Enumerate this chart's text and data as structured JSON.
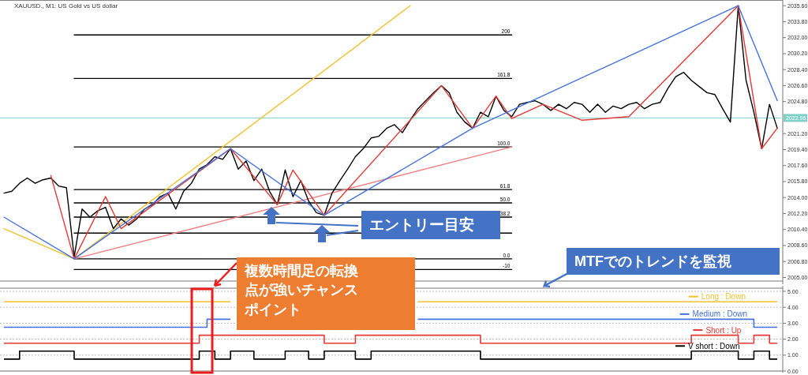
{
  "chart_data": [
    {
      "type": "line",
      "title": "XAUUSD., M1: US Gold vs US dollar",
      "ylim": [
        2004.6,
        2036.2
      ],
      "tick_labels": "y",
      "grid": false,
      "legend": false,
      "categories": [
        null,
        null,
        null,
        null,
        null,
        null,
        null,
        null,
        null,
        null,
        null,
        null,
        null,
        null,
        null,
        null,
        null,
        null,
        null,
        null,
        null,
        null,
        null,
        null,
        null,
        null,
        null,
        null,
        null,
        null,
        null,
        null,
        null,
        null,
        null,
        null,
        null,
        null,
        null,
        null,
        null,
        null,
        null,
        null,
        null,
        null,
        null,
        null,
        null,
        null,
        null,
        null,
        null,
        null,
        null,
        null,
        null,
        null,
        null,
        null,
        null,
        null,
        null,
        null,
        null,
        null,
        null,
        null,
        null,
        null,
        null,
        null,
        null,
        null,
        null,
        null,
        null,
        null,
        null,
        null,
        null,
        null,
        null,
        null,
        null,
        null,
        null,
        null,
        null,
        null,
        null,
        null,
        null,
        null,
        null,
        null,
        null,
        null,
        null,
        null
      ],
      "yticks": [
        {
          "value": 2005,
          "label": "2005.00"
        },
        {
          "value": 2006.8,
          "label": "2006.80"
        },
        {
          "value": 2008.6,
          "label": "2008.60"
        },
        {
          "value": 2010.4,
          "label": "2010.40"
        },
        {
          "value": 2012.2,
          "label": "2012.20"
        },
        {
          "value": 2014,
          "label": "2014.00"
        },
        {
          "value": 2015.8,
          "label": "2015.80"
        },
        {
          "value": 2017.6,
          "label": "2017.60"
        },
        {
          "value": 2019.4,
          "label": "2019.40"
        },
        {
          "value": 2021.2,
          "label": "2021.20"
        },
        {
          "value": 2024.8,
          "label": "2024.80"
        },
        {
          "value": 2026.6,
          "label": "2026.60"
        },
        {
          "value": 2028.4,
          "label": "2028.40"
        },
        {
          "value": 2030.2,
          "label": "2030.20"
        },
        {
          "value": 2032,
          "label": "2032.00"
        },
        {
          "value": 2033.8,
          "label": "2033.80"
        },
        {
          "value": 2035.6,
          "label": "2035.60"
        }
      ],
      "series": [
        {
          "name": "200",
          "color": "#000000",
          "values": [
            null,
            null,
            null,
            null,
            null,
            null,
            null,
            null,
            null,
            2032.3,
            null,
            null,
            null,
            null,
            null,
            null,
            null,
            null,
            null,
            null,
            null,
            null,
            null,
            null,
            null,
            null,
            null,
            null,
            null,
            null,
            null,
            null,
            null,
            null,
            null,
            null,
            null,
            null,
            null,
            null,
            null,
            null,
            null,
            null,
            null,
            null,
            null,
            null,
            null,
            null,
            null,
            null,
            null,
            null,
            null,
            null,
            null,
            null,
            null,
            null,
            null,
            null,
            null,
            null,
            null,
            2032.3,
            null,
            null,
            null,
            null,
            null,
            null,
            null,
            null,
            null,
            null,
            null,
            null,
            null,
            null,
            null,
            null,
            null,
            null,
            null,
            null,
            null,
            null,
            null,
            null,
            null,
            null,
            null,
            null,
            null,
            null,
            null,
            null,
            null,
            null
          ]
        },
        {
          "name": "161.8",
          "color": "#000000",
          "values": [
            null,
            null,
            null,
            null,
            null,
            null,
            null,
            null,
            null,
            2027.4,
            null,
            null,
            null,
            null,
            null,
            null,
            null,
            null,
            null,
            null,
            null,
            null,
            null,
            null,
            null,
            null,
            null,
            null,
            null,
            null,
            null,
            null,
            null,
            null,
            null,
            null,
            null,
            null,
            null,
            null,
            null,
            null,
            null,
            null,
            null,
            null,
            null,
            null,
            null,
            null,
            null,
            null,
            null,
            null,
            null,
            null,
            null,
            null,
            null,
            null,
            null,
            null,
            null,
            null,
            null,
            2027.4,
            null,
            null,
            null,
            null,
            null,
            null,
            null,
            null,
            null,
            null,
            null,
            null,
            null,
            null,
            null,
            null,
            null,
            null,
            null,
            null,
            null,
            null,
            null,
            null,
            null,
            null,
            null,
            null,
            null,
            null,
            null,
            null,
            null,
            null
          ]
        },
        {
          "name": "100.0",
          "color": "#000000",
          "values": [
            null,
            null,
            null,
            null,
            null,
            null,
            null,
            null,
            null,
            2019.7,
            null,
            null,
            null,
            null,
            null,
            null,
            null,
            null,
            null,
            null,
            null,
            null,
            null,
            null,
            null,
            null,
            null,
            null,
            null,
            null,
            null,
            null,
            null,
            null,
            null,
            null,
            null,
            null,
            null,
            null,
            null,
            null,
            null,
            null,
            null,
            null,
            null,
            null,
            null,
            null,
            null,
            null,
            null,
            null,
            null,
            null,
            null,
            null,
            null,
            null,
            null,
            null,
            null,
            null,
            null,
            2019.7,
            null,
            null,
            null,
            null,
            null,
            null,
            null,
            null,
            null,
            null,
            null,
            null,
            null,
            null,
            null,
            null,
            null,
            null,
            null,
            null,
            null,
            null,
            null,
            null,
            null,
            null,
            null,
            null,
            null,
            null,
            null,
            null,
            null,
            null
          ]
        },
        {
          "name": "61.8",
          "color": "#000000",
          "values": [
            null,
            null,
            null,
            null,
            null,
            null,
            null,
            null,
            null,
            2014.9,
            null,
            null,
            null,
            null,
            null,
            null,
            null,
            null,
            null,
            null,
            null,
            null,
            null,
            null,
            null,
            null,
            null,
            null,
            null,
            null,
            null,
            null,
            null,
            null,
            null,
            null,
            null,
            null,
            null,
            null,
            null,
            null,
            null,
            null,
            null,
            null,
            null,
            null,
            null,
            null,
            null,
            null,
            null,
            null,
            null,
            null,
            null,
            null,
            null,
            null,
            null,
            null,
            null,
            null,
            null,
            2014.9,
            null,
            null,
            null,
            null,
            null,
            null,
            null,
            null,
            null,
            null,
            null,
            null,
            null,
            null,
            null,
            null,
            null,
            null,
            null,
            null,
            null,
            null,
            null,
            null,
            null,
            null,
            null,
            null,
            null,
            null,
            null,
            null,
            null,
            null
          ]
        },
        {
          "name": "50.0",
          "color": "#000000",
          "values": [
            null,
            null,
            null,
            null,
            null,
            null,
            null,
            null,
            null,
            2013.4,
            null,
            null,
            null,
            null,
            null,
            null,
            null,
            null,
            null,
            null,
            null,
            null,
            null,
            null,
            null,
            null,
            null,
            null,
            null,
            null,
            null,
            null,
            null,
            null,
            null,
            null,
            null,
            null,
            null,
            null,
            null,
            null,
            null,
            null,
            null,
            null,
            null,
            null,
            null,
            null,
            null,
            null,
            null,
            null,
            null,
            null,
            null,
            null,
            null,
            null,
            null,
            null,
            null,
            null,
            null,
            2013.4,
            null,
            null,
            null,
            null,
            null,
            null,
            null,
            null,
            null,
            null,
            null,
            null,
            null,
            null,
            null,
            null,
            null,
            null,
            null,
            null,
            null,
            null,
            null,
            null,
            null,
            null,
            null,
            null,
            null,
            null,
            null,
            null,
            null,
            null
          ]
        },
        {
          "name": "38.2",
          "color": "#000000",
          "values": [
            null,
            null,
            null,
            null,
            null,
            null,
            null,
            null,
            null,
            2011.8,
            null,
            null,
            null,
            null,
            null,
            null,
            null,
            null,
            null,
            null,
            null,
            null,
            null,
            null,
            null,
            null,
            null,
            null,
            null,
            null,
            null,
            null,
            null,
            null,
            null,
            null,
            null,
            null,
            null,
            null,
            null,
            null,
            null,
            null,
            null,
            null,
            null,
            null,
            null,
            null,
            null,
            null,
            null,
            null,
            null,
            null,
            null,
            null,
            null,
            null,
            null,
            null,
            null,
            null,
            null,
            2011.8,
            null,
            null,
            null,
            null,
            null,
            null,
            null,
            null,
            null,
            null,
            null,
            null,
            null,
            null,
            null,
            null,
            null,
            null,
            null,
            null,
            null,
            null,
            null,
            null,
            null,
            null,
            null,
            null,
            null,
            null,
            null,
            null,
            null,
            null
          ]
        },
        {
          "color": "#000000",
          "values": [
            null,
            null,
            null,
            null,
            null,
            null,
            null,
            null,
            null,
            2010.0,
            null,
            null,
            null,
            null,
            null,
            null,
            null,
            null,
            null,
            null,
            null,
            null,
            null,
            null,
            null,
            null,
            null,
            null,
            null,
            null,
            null,
            null,
            null,
            null,
            null,
            null,
            null,
            null,
            null,
            null,
            null,
            null,
            null,
            null,
            null,
            null,
            null,
            null,
            null,
            null,
            null,
            null,
            null,
            null,
            null,
            null,
            null,
            null,
            null,
            null,
            null,
            null,
            null,
            null,
            null,
            2010.0,
            null,
            null,
            null,
            null,
            null,
            null,
            null,
            null,
            null,
            null,
            null,
            null,
            null,
            null,
            null,
            null,
            null,
            null,
            null,
            null,
            null,
            null,
            null,
            null,
            null,
            null,
            null,
            null,
            null,
            null,
            null,
            null,
            null,
            null
          ]
        },
        {
          "name": "0.0",
          "color": "#000000",
          "values": [
            null,
            null,
            null,
            null,
            null,
            null,
            null,
            null,
            null,
            2007.1,
            null,
            null,
            null,
            null,
            null,
            null,
            null,
            null,
            null,
            null,
            null,
            null,
            null,
            null,
            null,
            null,
            null,
            null,
            null,
            null,
            null,
            null,
            null,
            null,
            null,
            null,
            null,
            null,
            null,
            null,
            null,
            null,
            null,
            null,
            null,
            null,
            null,
            null,
            null,
            null,
            null,
            null,
            null,
            null,
            null,
            null,
            null,
            null,
            null,
            null,
            null,
            null,
            null,
            null,
            null,
            2007.1,
            null,
            null,
            null,
            null,
            null,
            null,
            null,
            null,
            null,
            null,
            null,
            null,
            null,
            null,
            null,
            null,
            null,
            null,
            null,
            null,
            null,
            null,
            null,
            null,
            null,
            null,
            null,
            null,
            null,
            null,
            null,
            null,
            null,
            null
          ]
        },
        {
          "name": "-10",
          "color": "#000000",
          "values": [
            null,
            null,
            null,
            null,
            null,
            null,
            null,
            null,
            null,
            2005.9,
            null,
            null,
            null,
            null,
            null,
            null,
            null,
            null,
            null,
            null,
            null,
            null,
            null,
            null,
            null,
            null,
            null,
            null,
            null,
            null,
            null,
            null,
            null,
            null,
            null,
            null,
            null,
            null,
            null,
            null,
            null,
            null,
            null,
            null,
            null,
            null,
            null,
            null,
            null,
            null,
            null,
            null,
            null,
            null,
            null,
            null,
            null,
            null,
            null,
            null,
            null,
            null,
            null,
            null,
            null,
            2005.9,
            null,
            null,
            null,
            null,
            null,
            null,
            null,
            null,
            null,
            null,
            null,
            null,
            null,
            null,
            null,
            null,
            null,
            null,
            null,
            null,
            null,
            null,
            null,
            null,
            null,
            null,
            null,
            null,
            null,
            null,
            null,
            null,
            null,
            null
          ]
        },
        {
          "color": "#f2c12e",
          "values": [
            2010.5,
            null,
            null,
            null,
            null,
            null,
            null,
            null,
            null,
            2007.1,
            null,
            null,
            null,
            null,
            null,
            null,
            null,
            null,
            null,
            null,
            null,
            null,
            null,
            null,
            null,
            null,
            null,
            null,
            null,
            null,
            null,
            null,
            null,
            null,
            null,
            null,
            null,
            null,
            null,
            null,
            null,
            null,
            null,
            null,
            null,
            null,
            null,
            null,
            null,
            null,
            null,
            null,
            2035.6,
            null,
            null,
            null,
            null,
            null,
            null,
            null,
            null,
            null,
            null,
            null,
            null,
            null,
            null,
            null,
            null,
            null,
            null,
            null,
            null,
            null,
            null,
            null,
            null,
            null,
            null,
            null,
            null,
            null,
            null,
            null,
            null,
            null,
            null,
            null,
            null,
            null,
            null,
            null,
            null,
            null,
            null,
            null,
            null,
            null,
            null,
            null
          ]
        },
        {
          "color": "#f08080",
          "values": [
            null,
            null,
            null,
            null,
            null,
            null,
            null,
            null,
            null,
            2007.1,
            null,
            null,
            null,
            null,
            null,
            null,
            null,
            null,
            null,
            null,
            null,
            null,
            null,
            null,
            null,
            null,
            null,
            null,
            null,
            null,
            null,
            null,
            null,
            null,
            null,
            null,
            null,
            null,
            null,
            null,
            null,
            null,
            null,
            null,
            null,
            null,
            null,
            null,
            null,
            null,
            null,
            null,
            null,
            null,
            null,
            null,
            null,
            null,
            null,
            null,
            null,
            null,
            null,
            null,
            null,
            2019.7,
            null,
            null,
            null,
            null,
            null,
            null,
            null,
            null,
            null,
            null,
            null,
            null,
            null,
            null,
            null,
            null,
            null,
            null,
            null,
            null,
            null,
            null,
            null,
            null,
            null,
            null,
            null,
            null,
            null,
            null,
            null,
            null,
            null,
            null
          ]
        },
        {
          "color": "#000000",
          "values": [
            2014.5,
            2014.7,
            2015.6,
            2016.2,
            2015.6,
            2016.0,
            2016.2,
            2015.3,
            2015.1,
            2007.3,
            2012.7,
            2011.8,
            2012.5,
            2012.9,
            2010.5,
            2011.6,
            2010.9,
            2011.6,
            2012.7,
            2013.2,
            2014.1,
            2014.5,
            2012.7,
            2014.7,
            2015.6,
            2017.2,
            2017.7,
            2018.6,
            2018.3,
            2019.5,
            2017.2,
            2018.1,
            2015.9,
            2017.2,
            2014.7,
            2013.2,
            2017.1,
            2014.1,
            2015.9,
            2013.6,
            2012.3,
            2012.0,
            2014.5,
            2015.9,
            2017.2,
            2018.6,
            2019.5,
            2020.7,
            2020.9,
            2021.8,
            2022.2,
            2021.3,
            2022.7,
            2024.0,
            2024.9,
            2025.8,
            2026.6,
            2025.8,
            2023.6,
            2022.5,
            2021.8,
            2023.6,
            2023.1,
            2025.4,
            2023.8,
            2023.1,
            2024.5,
            2024.7,
            2024.9,
            2024.5,
            2023.8,
            2024.5,
            2024.0,
            2024.7,
            2024.5,
            2023.6,
            2024.5,
            2023.6,
            2024.3,
            2024.0,
            2024.5,
            2024.7,
            2024.0,
            2024.5,
            2024.7,
            2026.3,
            2027.6,
            2028.1,
            2027.2,
            2026.5,
            2025.8,
            2025.6,
            2024.0,
            2022.5,
            2035.6,
            2027.2,
            2023.6,
            2019.5,
            2024.5,
            2021.8
          ]
        },
        {
          "color": "#e53935",
          "values": [
            null,
            null,
            null,
            null,
            null,
            null,
            2016.5,
            null,
            null,
            2007.1,
            null,
            null,
            null,
            2014.1,
            null,
            2010.5,
            null,
            null,
            null,
            null,
            null,
            null,
            null,
            null,
            null,
            null,
            null,
            null,
            null,
            2019.5,
            null,
            null,
            null,
            null,
            null,
            2013.2,
            null,
            2017.1,
            null,
            null,
            null,
            2012.0,
            null,
            null,
            null,
            null,
            null,
            null,
            null,
            null,
            null,
            null,
            null,
            null,
            null,
            null,
            2026.6,
            null,
            null,
            null,
            2021.8,
            null,
            null,
            2025.4,
            null,
            2022.9,
            null,
            null,
            null,
            2024.5,
            null,
            null,
            null,
            null,
            2022.7,
            null,
            null,
            null,
            null,
            null,
            2023.1,
            null,
            null,
            null,
            null,
            null,
            null,
            null,
            null,
            null,
            null,
            null,
            null,
            null,
            2035.6,
            null,
            null,
            2019.5,
            null,
            2021.8
          ]
        },
        {
          "color": "#4472e0",
          "values": [
            2011.8,
            null,
            null,
            null,
            null,
            null,
            null,
            null,
            null,
            2007.1,
            null,
            null,
            null,
            null,
            null,
            null,
            null,
            null,
            null,
            null,
            null,
            null,
            null,
            null,
            null,
            null,
            null,
            null,
            null,
            2019.5,
            null,
            null,
            null,
            null,
            null,
            null,
            null,
            null,
            null,
            null,
            null,
            2012.0,
            null,
            null,
            null,
            null,
            null,
            null,
            null,
            null,
            null,
            null,
            null,
            null,
            null,
            null,
            null,
            null,
            null,
            null,
            2021.8,
            null,
            null,
            null,
            null,
            null,
            null,
            null,
            null,
            null,
            null,
            null,
            null,
            null,
            null,
            null,
            null,
            null,
            null,
            null,
            null,
            null,
            null,
            null,
            null,
            null,
            null,
            null,
            null,
            null,
            null,
            null,
            null,
            null,
            2035.6,
            null,
            null,
            null,
            null,
            2024.9
          ]
        }
      ],
      "ref_lines": [
        {
          "axis": "y",
          "value": 2022.96,
          "label": "2022.96",
          "color": "#7fd1c7"
        }
      ],
      "annotations": [
        "エントリー目安",
        "MTFでのトレンドを監視",
        "複数時間足の転換点が強いチャンスポイント"
      ]
    },
    {
      "type": "step",
      "ylim": [
        0,
        5.2
      ],
      "tick_labels": "y",
      "grid": "y",
      "legend": "right",
      "categories": [
        null,
        null,
        null,
        null,
        null,
        null,
        null,
        null,
        null,
        null,
        null,
        null,
        null,
        null,
        null,
        null,
        null,
        null,
        null,
        null,
        null,
        null,
        null,
        null,
        null,
        null,
        null,
        null,
        null,
        null,
        null,
        null,
        null,
        null,
        null,
        null,
        null,
        null,
        null,
        null,
        null,
        null,
        null,
        null,
        null,
        null,
        null,
        null,
        null,
        null,
        null,
        null,
        null,
        null,
        null,
        null,
        null,
        null,
        null,
        null,
        null,
        null,
        null,
        null,
        null,
        null,
        null,
        null,
        null,
        null,
        null,
        null,
        null,
        null,
        null,
        null,
        null,
        null,
        null,
        null,
        null,
        null,
        null,
        null,
        null,
        null,
        null,
        null,
        null,
        null,
        null,
        null,
        null,
        null,
        null,
        null,
        null,
        null,
        null,
        null
      ],
      "yticks": [
        {
          "value": 0,
          "label": "0.00"
        },
        {
          "value": 1,
          "label": "1.00"
        },
        {
          "value": 2,
          "label": "2.00"
        },
        {
          "value": 3,
          "label": "3.00"
        },
        {
          "value": 4,
          "label": "4.00"
        },
        {
          "value": 5,
          "label": "5.00"
        }
      ],
      "series": [
        {
          "name": "Long :  Down",
          "color": "#f2c12e",
          "values": [
            4.35,
            4.35,
            4.35,
            4.35,
            4.35,
            4.35,
            4.35,
            4.35,
            4.35,
            4.35,
            4.35,
            4.35,
            4.35,
            4.35,
            4.35,
            4.35,
            4.35,
            4.35,
            4.35,
            4.35,
            4.35,
            4.35,
            4.35,
            4.35,
            4.35,
            4.35,
            4.35,
            4.35,
            4.35,
            4.35,
            null,
            null,
            null,
            null,
            null,
            null,
            null,
            null,
            null,
            null,
            null,
            null,
            null,
            null,
            null,
            null,
            null,
            null,
            null,
            null,
            null,
            null,
            null,
            4.35,
            4.35,
            4.35,
            4.35,
            4.35,
            4.35,
            4.35,
            4.35,
            4.35,
            4.35,
            4.35,
            4.35,
            4.35,
            4.35,
            4.35,
            4.35,
            4.35,
            4.35,
            4.35,
            4.35,
            4.35,
            4.35,
            4.35,
            4.35,
            4.35,
            4.35,
            4.35,
            4.35,
            4.35,
            4.35,
            4.35,
            4.35,
            4.35,
            4.35,
            4.35,
            4.35,
            4.35,
            4.35,
            4.35,
            4.35,
            4.35,
            4.35,
            4.35,
            4.35,
            4.35,
            4.35,
            4.35
          ]
        },
        {
          "name": "Medium :  Down",
          "color": "#4472e0",
          "values": [
            2.75,
            2.75,
            2.75,
            2.75,
            2.75,
            2.75,
            2.75,
            2.75,
            2.75,
            2.75,
            2.75,
            2.75,
            2.75,
            2.75,
            2.75,
            2.75,
            2.75,
            2.75,
            2.75,
            2.75,
            2.75,
            2.75,
            2.75,
            2.75,
            2.75,
            2.75,
            3.25,
            3.25,
            3.25,
            3.25,
            null,
            null,
            null,
            null,
            null,
            null,
            null,
            null,
            null,
            null,
            null,
            null,
            null,
            null,
            null,
            null,
            null,
            null,
            null,
            null,
            null,
            null,
            null,
            3.25,
            3.25,
            3.25,
            3.25,
            3.25,
            3.25,
            3.25,
            3.25,
            3.25,
            3.25,
            3.25,
            3.25,
            3.25,
            3.25,
            3.25,
            3.25,
            3.25,
            3.25,
            3.25,
            3.25,
            3.25,
            3.25,
            3.25,
            3.25,
            3.25,
            3.25,
            3.25,
            3.25,
            3.25,
            3.25,
            3.25,
            3.25,
            3.25,
            3.25,
            3.25,
            3.25,
            3.25,
            3.25,
            3.25,
            3.25,
            3.25,
            3.25,
            3.25,
            2.75,
            2.75,
            2.75,
            2.75
          ]
        },
        {
          "name": "Short :  Up",
          "color": "#e53935",
          "values": [
            1.75,
            1.75,
            1.75,
            1.75,
            1.75,
            1.75,
            1.75,
            1.75,
            1.75,
            1.75,
            1.75,
            1.75,
            1.75,
            1.75,
            1.75,
            1.75,
            1.75,
            1.75,
            1.75,
            1.75,
            1.75,
            1.75,
            1.75,
            1.75,
            1.75,
            2.25,
            2.25,
            2.25,
            2.25,
            2.25,
            2.25,
            2.25,
            2.25,
            2.25,
            2.25,
            2.25,
            2.25,
            2.25,
            2.25,
            2.25,
            2.25,
            1.75,
            1.75,
            1.75,
            1.75,
            2.25,
            2.25,
            2.25,
            2.25,
            2.25,
            2.25,
            2.25,
            2.25,
            2.25,
            2.25,
            2.25,
            2.25,
            2.25,
            2.25,
            2.25,
            2.25,
            1.75,
            1.75,
            1.75,
            1.75,
            1.75,
            1.75,
            1.75,
            1.75,
            1.75,
            1.75,
            1.75,
            1.75,
            1.75,
            1.75,
            1.75,
            1.75,
            1.75,
            1.75,
            1.75,
            1.75,
            1.75,
            1.75,
            1.75,
            1.75,
            1.75,
            1.75,
            1.75,
            2.25,
            2.25,
            2.25,
            2.25,
            2.25,
            2.25,
            1.75,
            1.75,
            2.25,
            2.25,
            1.75,
            1.75
          ]
        },
        {
          "name": "V short :  Down",
          "color": "#000000",
          "values": [
            0.75,
            0.75,
            1.25,
            1.25,
            1.25,
            1.25,
            1.25,
            1.25,
            1.25,
            0.75,
            0.75,
            0.75,
            0.75,
            0.75,
            0.75,
            0.75,
            0.75,
            0.75,
            0.75,
            0.75,
            0.75,
            0.75,
            0.75,
            0.75,
            0.75,
            1.25,
            1.25,
            0.75,
            0.75,
            1.25,
            1.25,
            1.25,
            0.75,
            0.75,
            0.75,
            0.75,
            1.25,
            1.25,
            1.25,
            0.75,
            0.75,
            1.25,
            1.25,
            1.25,
            1.25,
            0.75,
            0.75,
            1.25,
            1.25,
            1.25,
            1.25,
            1.25,
            1.25,
            1.25,
            1.25,
            1.25,
            1.25,
            1.25,
            1.25,
            1.25,
            1.25,
            0.75,
            0.75,
            0.75,
            0.75,
            0.75,
            0.75,
            0.75,
            0.75,
            0.75,
            0.75,
            0.75,
            0.75,
            0.75,
            0.75,
            0.75,
            0.75,
            0.75,
            0.75,
            0.75,
            0.75,
            0.75,
            0.75,
            0.75,
            0.75,
            0.75,
            0.75,
            0.75,
            1.25,
            1.25,
            1.25,
            1.25,
            1.25,
            1.25,
            0.75,
            0.75,
            1.25,
            1.25,
            0.75,
            0.75
          ]
        }
      ]
    }
  ]
}
